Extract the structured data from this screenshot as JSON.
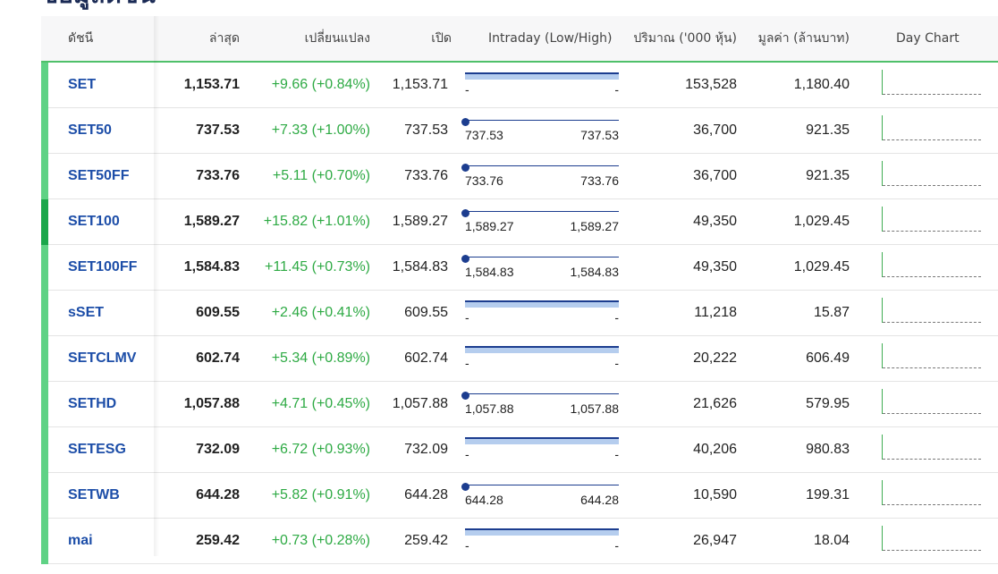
{
  "page": {
    "title": "ข้อมูลดัชนี"
  },
  "table": {
    "headers": {
      "index": "ดัชนี",
      "last": "ล่าสุด",
      "change": "เปลี่ยนแปลง",
      "open": "เปิด",
      "intraday": "Intraday (Low/High)",
      "volume": "ปริมาณ ('000 หุ้น)",
      "value": "มูลค่า (ล้านบาท)",
      "day_chart": "Day Chart"
    },
    "rows": [
      {
        "name": "SET",
        "last": "1,153.71",
        "change": "+9.66 (+0.84%)",
        "open": "1,153.71",
        "intraday_style": "flat",
        "low": "-",
        "high": "-",
        "volume": "153,528",
        "value": "1,180.40",
        "accent": "normal"
      },
      {
        "name": "SET50",
        "last": "737.53",
        "change": "+7.33 (+1.00%)",
        "open": "737.53",
        "intraday_style": "point",
        "low": "737.53",
        "high": "737.53",
        "volume": "36,700",
        "value": "921.35",
        "accent": "normal"
      },
      {
        "name": "SET50FF",
        "last": "733.76",
        "change": "+5.11 (+0.70%)",
        "open": "733.76",
        "intraday_style": "point",
        "low": "733.76",
        "high": "733.76",
        "volume": "36,700",
        "value": "921.35",
        "accent": "normal"
      },
      {
        "name": "SET100",
        "last": "1,589.27",
        "change": "+15.82 (+1.01%)",
        "open": "1,589.27",
        "intraday_style": "point",
        "low": "1,589.27",
        "high": "1,589.27",
        "volume": "49,350",
        "value": "1,029.45",
        "accent": "strong"
      },
      {
        "name": "SET100FF",
        "last": "1,584.83",
        "change": "+11.45 (+0.73%)",
        "open": "1,584.83",
        "intraday_style": "point",
        "low": "1,584.83",
        "high": "1,584.83",
        "volume": "49,350",
        "value": "1,029.45",
        "accent": "normal"
      },
      {
        "name": "sSET",
        "last": "609.55",
        "change": "+2.46 (+0.41%)",
        "open": "609.55",
        "intraday_style": "flat",
        "low": "-",
        "high": "-",
        "volume": "11,218",
        "value": "15.87",
        "accent": "normal"
      },
      {
        "name": "SETCLMV",
        "last": "602.74",
        "change": "+5.34 (+0.89%)",
        "open": "602.74",
        "intraday_style": "flat",
        "low": "-",
        "high": "-",
        "volume": "20,222",
        "value": "606.49",
        "accent": "normal"
      },
      {
        "name": "SETHD",
        "last": "1,057.88",
        "change": "+4.71 (+0.45%)",
        "open": "1,057.88",
        "intraday_style": "point",
        "low": "1,057.88",
        "high": "1,057.88",
        "volume": "21,626",
        "value": "579.95",
        "accent": "normal"
      },
      {
        "name": "SETESG",
        "last": "732.09",
        "change": "+6.72 (+0.93%)",
        "open": "732.09",
        "intraday_style": "flat",
        "low": "-",
        "high": "-",
        "volume": "40,206",
        "value": "980.83",
        "accent": "normal"
      },
      {
        "name": "SETWB",
        "last": "644.28",
        "change": "+5.82 (+0.91%)",
        "open": "644.28",
        "intraday_style": "point",
        "low": "644.28",
        "high": "644.28",
        "volume": "10,590",
        "value": "199.31",
        "accent": "normal"
      },
      {
        "name": "mai",
        "last": "259.42",
        "change": "+0.73 (+0.28%)",
        "open": "259.42",
        "intraday_style": "flat",
        "low": "-",
        "high": "-",
        "volume": "26,947",
        "value": "18.04",
        "accent": "normal"
      }
    ]
  },
  "colors": {
    "index_link": "#1d4ea8",
    "positive_change": "#2eaa44",
    "row_accent": "#5fd285",
    "row_accent_active": "#1aa64a",
    "intraday_bar": "#1c3d8f",
    "intraday_fill": "#b5cdee"
  }
}
